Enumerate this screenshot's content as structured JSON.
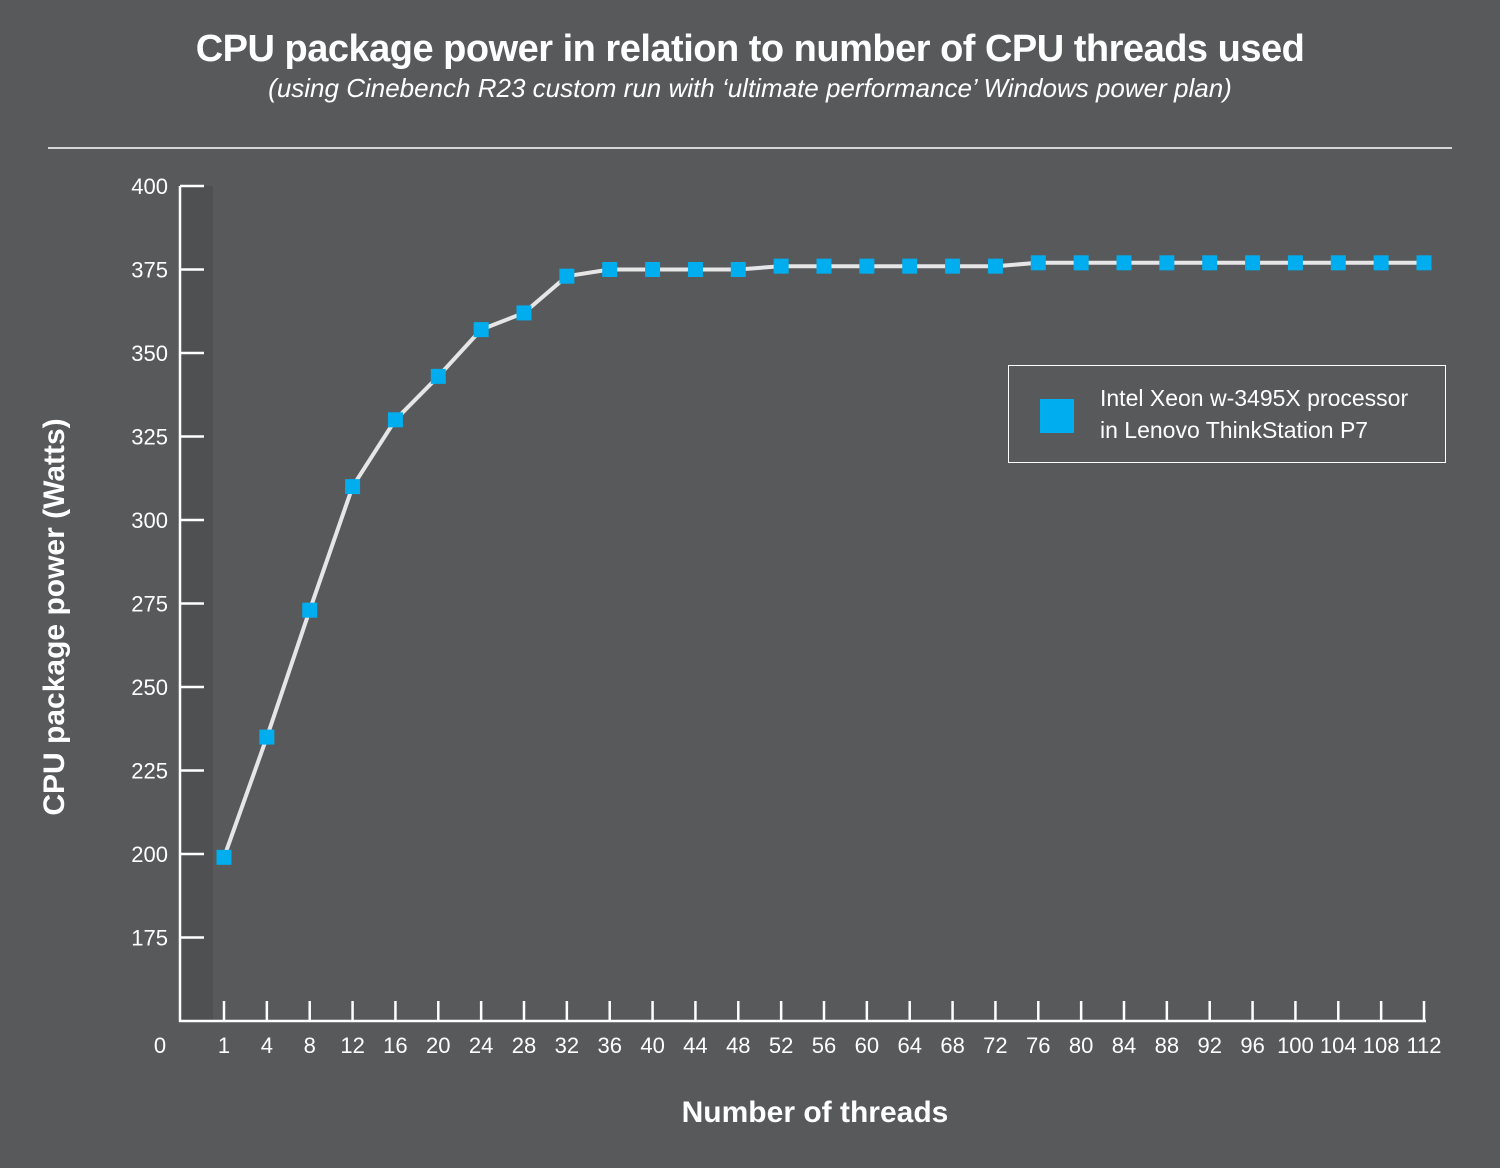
{
  "chart_data": {
    "type": "line",
    "title": "CPU package power in relation to number of CPU threads used",
    "subtitle": "(using Cinebench R23 custom run with ‘ultimate performance’ Windows power plan)",
    "xlabel": "Number of threads",
    "ylabel": "CPU package  power (Watts)",
    "x_origin_label": "0",
    "categories": [
      "1",
      "4",
      "8",
      "12",
      "16",
      "20",
      "24",
      "28",
      "32",
      "36",
      "40",
      "44",
      "48",
      "52",
      "56",
      "60",
      "64",
      "68",
      "72",
      "76",
      "80",
      "84",
      "88",
      "92",
      "96",
      "100",
      "104",
      "108",
      "112"
    ],
    "y_ticks": [
      175,
      200,
      225,
      250,
      275,
      300,
      325,
      350,
      375,
      400
    ],
    "ylim": [
      150,
      400
    ],
    "y_axis_broken": true,
    "grid": false,
    "legend_position": "right",
    "series": [
      {
        "name_lines": [
          "Intel Xeon w-3495X processor",
          "in Lenovo ThinkStation P7"
        ],
        "color": "#00aeef",
        "line_color": "#e6e6e6",
        "marker": "square",
        "values": [
          199,
          235,
          273,
          310,
          330,
          343,
          357,
          362,
          373,
          375,
          375,
          375,
          375,
          376,
          376,
          376,
          376,
          376,
          376,
          377,
          377,
          377,
          377,
          377,
          377,
          377,
          377,
          377,
          377
        ]
      }
    ]
  },
  "colors": {
    "background": "#58595b",
    "accent": "#00aeef",
    "text": "#ffffff"
  }
}
